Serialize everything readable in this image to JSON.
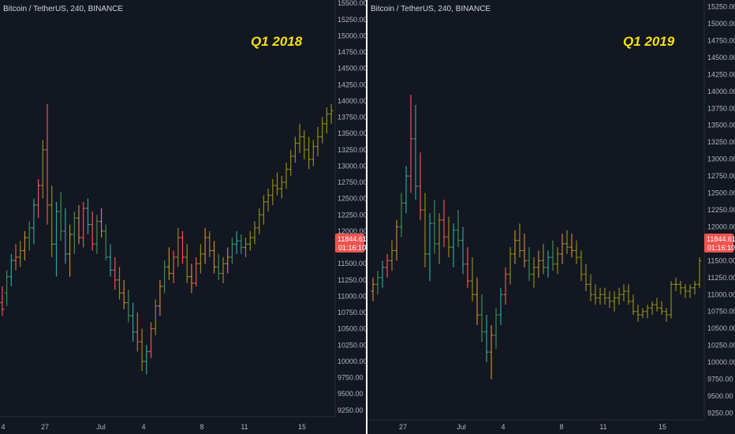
{
  "colors": {
    "background": "#131722",
    "divider": "#ffffff",
    "up": "#26a69a",
    "down": "#ef5350",
    "orange": "#c8872c",
    "olive": "#8f8c16",
    "green_dark": "#3e8e4a",
    "annotation": "#f5e10c",
    "price_tag": "#ef5350"
  },
  "chart_data": [
    {
      "type": "ohlc",
      "title": "Bitcoin / TetherUS, 240, BINANCE",
      "annotation": "Q1 2018",
      "ylim": [
        9150,
        15550
      ],
      "y_ticks": [
        "15500.00",
        "15250.00",
        "15000.00",
        "14750.00",
        "14500.00",
        "14250.00",
        "14000.00",
        "13750.00",
        "13500.00",
        "13250.00",
        "13000.00",
        "12750.00",
        "12500.00",
        "12250.00",
        "12000.00",
        "11750.00",
        "11500.00",
        "11250.00",
        "11000.00",
        "10750.00",
        "10500.00",
        "10250.00",
        "10000.00",
        "9750.00",
        "9500.00",
        "9250.00"
      ],
      "x_ticks": [
        "4",
        "27",
        "Jul",
        "4",
        "8",
        "11",
        "15"
      ],
      "last_price": "11844.61",
      "countdown": "01:16:10",
      "bars": [
        [
          10900,
          11150,
          10700,
          10800
        ],
        [
          11050,
          11400,
          10850,
          11300
        ],
        [
          11300,
          11650,
          11150,
          11550
        ],
        [
          11550,
          11800,
          11400,
          11600
        ],
        [
          11600,
          11850,
          11450,
          11700
        ],
        [
          11700,
          12000,
          11550,
          11900
        ],
        [
          11900,
          12150,
          11700,
          12050
        ],
        [
          12050,
          12500,
          11800,
          12400
        ],
        [
          12400,
          12800,
          12200,
          12700
        ],
        [
          12700,
          13400,
          12500,
          13250
        ],
        [
          13250,
          13950,
          12100,
          12400
        ],
        [
          12400,
          12700,
          11600,
          11800
        ],
        [
          11800,
          12450,
          11300,
          12300
        ],
        [
          12300,
          12600,
          11850,
          12000
        ],
        [
          12000,
          12350,
          11500,
          11650
        ],
        [
          11650,
          12100,
          11300,
          11950
        ],
        [
          11950,
          12300,
          11650,
          12200
        ],
        [
          12200,
          12400,
          11800,
          11900
        ],
        [
          11900,
          12450,
          11750,
          12350
        ],
        [
          12350,
          12500,
          11950,
          12100
        ],
        [
          12100,
          12300,
          11700,
          11800
        ],
        [
          11800,
          12250,
          11650,
          12150
        ],
        [
          12150,
          12350,
          11900,
          12000
        ],
        [
          12000,
          12100,
          11550,
          11600
        ],
        [
          11600,
          11800,
          11300,
          11400
        ],
        [
          11400,
          11600,
          11100,
          11250
        ],
        [
          11250,
          11450,
          10950,
          11050
        ],
        [
          11050,
          11250,
          10800,
          10900
        ],
        [
          10900,
          11100,
          10600,
          10700
        ],
        [
          10700,
          10900,
          10300,
          10450
        ],
        [
          10450,
          10750,
          10150,
          10300
        ],
        [
          10300,
          10500,
          9850,
          10000
        ],
        [
          10000,
          10250,
          9800,
          10150
        ],
        [
          10150,
          10600,
          10050,
          10500
        ],
        [
          10500,
          10950,
          10400,
          10850
        ],
        [
          10850,
          11250,
          10700,
          11150
        ],
        [
          11150,
          11550,
          11050,
          11450
        ],
        [
          11450,
          11750,
          11250,
          11350
        ],
        [
          11350,
          11700,
          11200,
          11600
        ],
        [
          11600,
          12050,
          11450,
          11900
        ],
        [
          11900,
          12000,
          11500,
          11600
        ],
        [
          11600,
          11800,
          11200,
          11300
        ],
        [
          11300,
          11500,
          11050,
          11200
        ],
        [
          11200,
          11600,
          11150,
          11500
        ],
        [
          11500,
          11800,
          11350,
          11650
        ],
        [
          11650,
          12050,
          11500,
          11900
        ],
        [
          11900,
          12000,
          11600,
          11700
        ],
        [
          11700,
          11850,
          11350,
          11450
        ],
        [
          11450,
          11650,
          11250,
          11350
        ],
        [
          11350,
          11600,
          11200,
          11500
        ],
        [
          11500,
          11750,
          11350,
          11600
        ],
        [
          11600,
          11900,
          11500,
          11800
        ],
        [
          11800,
          12000,
          11650,
          11850
        ],
        [
          11850,
          11950,
          11650,
          11750
        ],
        [
          11750,
          11900,
          11600,
          11800
        ],
        [
          11800,
          12000,
          11700,
          11900
        ],
        [
          11900,
          12150,
          11800,
          12050
        ],
        [
          12050,
          12350,
          11950,
          12250
        ],
        [
          12250,
          12550,
          12100,
          12450
        ],
        [
          12450,
          12650,
          12300,
          12550
        ],
        [
          12550,
          12800,
          12400,
          12700
        ],
        [
          12700,
          12900,
          12550,
          12650
        ],
        [
          12650,
          12850,
          12500,
          12750
        ],
        [
          12750,
          13050,
          12650,
          12950
        ],
        [
          12950,
          13250,
          12850,
          13150
        ],
        [
          13150,
          13450,
          13050,
          13350
        ],
        [
          13350,
          13650,
          13200,
          13450
        ],
        [
          13450,
          13550,
          13100,
          13250
        ],
        [
          13250,
          13450,
          12950,
          13100
        ],
        [
          13100,
          13400,
          13000,
          13300
        ],
        [
          13300,
          13600,
          13150,
          13450
        ],
        [
          13450,
          13750,
          13350,
          13650
        ],
        [
          13650,
          13900,
          13500,
          13800
        ],
        [
          13800,
          13950,
          13650,
          13850
        ]
      ]
    },
    {
      "type": "ohlc",
      "title": "Bitcoin / TetherUS, 240, BINANCE",
      "annotation": "Q1 2019",
      "ylim": [
        9150,
        15350
      ],
      "y_ticks": [
        "15250.00",
        "15000.00",
        "14750.00",
        "14500.00",
        "14250.00",
        "14000.00",
        "13750.00",
        "13500.00",
        "13250.00",
        "13000.00",
        "12750.00",
        "12500.00",
        "12250.00",
        "12000.00",
        "11750.00",
        "11500.00",
        "11250.00",
        "11000.00",
        "10750.00",
        "10500.00",
        "10250.00",
        "10000.00",
        "9750.00",
        "9500.00",
        "9250.00"
      ],
      "x_ticks": [
        "27",
        "Jul",
        "4",
        "8",
        "11",
        "15"
      ],
      "last_price": "11844.61",
      "countdown": "01:16:10",
      "bars": [
        [
          11050,
          11250,
          10900,
          11150
        ],
        [
          11150,
          11350,
          11000,
          11250
        ],
        [
          11250,
          11500,
          11100,
          11400
        ],
        [
          11400,
          11600,
          11250,
          11500
        ],
        [
          11500,
          11800,
          11350,
          11650
        ],
        [
          11650,
          12100,
          11500,
          12000
        ],
        [
          12000,
          12500,
          11850,
          12350
        ],
        [
          12350,
          12900,
          12200,
          12750
        ],
        [
          12750,
          13950,
          12500,
          13300
        ],
        [
          13300,
          13800,
          12400,
          12600
        ],
        [
          12600,
          13100,
          12100,
          12250
        ],
        [
          12250,
          12500,
          11400,
          11600
        ],
        [
          11600,
          12200,
          11200,
          12050
        ],
        [
          12050,
          12400,
          11600,
          11750
        ],
        [
          11750,
          12200,
          11450,
          12100
        ],
        [
          12100,
          12400,
          11700,
          11850
        ],
        [
          11850,
          12150,
          11550,
          11700
        ],
        [
          11700,
          12050,
          11400,
          11950
        ],
        [
          11950,
          12250,
          11700,
          11800
        ],
        [
          11800,
          12000,
          11300,
          11450
        ],
        [
          11450,
          11700,
          11100,
          11200
        ],
        [
          11200,
          11550,
          10900,
          11000
        ],
        [
          11000,
          11250,
          10550,
          10700
        ],
        [
          10700,
          11000,
          10300,
          10450
        ],
        [
          10450,
          10700,
          10000,
          10150
        ],
        [
          10150,
          10550,
          9750,
          10400
        ],
        [
          10400,
          10800,
          10200,
          10700
        ],
        [
          10700,
          11100,
          10550,
          11000
        ],
        [
          11000,
          11400,
          10850,
          11300
        ],
        [
          11300,
          11700,
          11150,
          11600
        ],
        [
          11600,
          11950,
          11450,
          11800
        ],
        [
          11800,
          12050,
          11550,
          11650
        ],
        [
          11650,
          11900,
          11400,
          11500
        ],
        [
          11500,
          11700,
          11200,
          11300
        ],
        [
          11300,
          11550,
          11100,
          11400
        ],
        [
          11400,
          11650,
          11250,
          11500
        ],
        [
          11500,
          11750,
          11300,
          11400
        ],
        [
          11400,
          11650,
          11250,
          11550
        ],
        [
          11550,
          11800,
          11350,
          11450
        ],
        [
          11450,
          11700,
          11300,
          11600
        ],
        [
          11600,
          11900,
          11450,
          11750
        ],
        [
          11750,
          11950,
          11600,
          11700
        ],
        [
          11700,
          11900,
          11550,
          11650
        ],
        [
          11650,
          11800,
          11450,
          11550
        ],
        [
          11550,
          11650,
          11200,
          11300
        ],
        [
          11300,
          11450,
          11050,
          11150
        ],
        [
          11150,
          11300,
          10900,
          11000
        ],
        [
          11000,
          11150,
          10850,
          10950
        ],
        [
          10950,
          11100,
          10850,
          11000
        ],
        [
          11000,
          11100,
          10850,
          10950
        ],
        [
          10950,
          11050,
          10800,
          10900
        ],
        [
          10900,
          11050,
          10750,
          10950
        ],
        [
          10950,
          11100,
          10850,
          11000
        ],
        [
          11000,
          11150,
          10900,
          11050
        ],
        [
          11050,
          11150,
          10850,
          10900
        ],
        [
          10900,
          11000,
          10700,
          10750
        ],
        [
          10750,
          10850,
          10600,
          10700
        ],
        [
          10700,
          10800,
          10650,
          10750
        ],
        [
          10750,
          10850,
          10650,
          10800
        ],
        [
          10800,
          10900,
          10700,
          10850
        ],
        [
          10850,
          10950,
          10750,
          10800
        ],
        [
          10800,
          10900,
          10700,
          10750
        ],
        [
          10750,
          10800,
          10600,
          10700
        ],
        [
          10700,
          11200,
          10650,
          11150
        ],
        [
          11150,
          11250,
          11050,
          11150
        ],
        [
          11150,
          11200,
          11000,
          11100
        ],
        [
          11100,
          11150,
          10950,
          11050
        ],
        [
          11050,
          11150,
          10950,
          11100
        ],
        [
          11100,
          11200,
          11000,
          11150
        ],
        [
          11150,
          11550,
          11100,
          11500
        ]
      ]
    }
  ]
}
